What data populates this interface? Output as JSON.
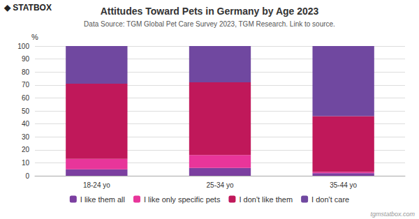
{
  "chart_data": {
    "type": "bar",
    "stacked": true,
    "title": "Attitudes Toward Pets in Germany by Age 2023",
    "subtitle": "Data Source: TGM Global Pet Care Survey 2023, TGM Research. Link to source.",
    "ylabel": "%",
    "annotations": [
      "◆ STATBOX",
      "tgmstatbox.com"
    ],
    "categories": [
      "18-24 yo",
      "25-34 yo",
      "35-44 yo"
    ],
    "series": [
      {
        "name": "I like them all",
        "color": "#7B3FA0",
        "values": [
          5,
          6,
          2
        ]
      },
      {
        "name": "I like only specific pets",
        "color": "#E8359A",
        "values": [
          8,
          10,
          1
        ]
      },
      {
        "name": "I don't like them",
        "color": "#C0185A",
        "values": [
          58,
          56,
          43
        ]
      },
      {
        "name": "I don't care",
        "color": "#7048A0",
        "values": [
          29,
          28,
          54
        ]
      }
    ],
    "ylim": [
      0,
      100
    ],
    "yticks": [
      0,
      10,
      20,
      30,
      40,
      50,
      60,
      70,
      80,
      90,
      100
    ],
    "grid": true,
    "legend": "bottom"
  }
}
